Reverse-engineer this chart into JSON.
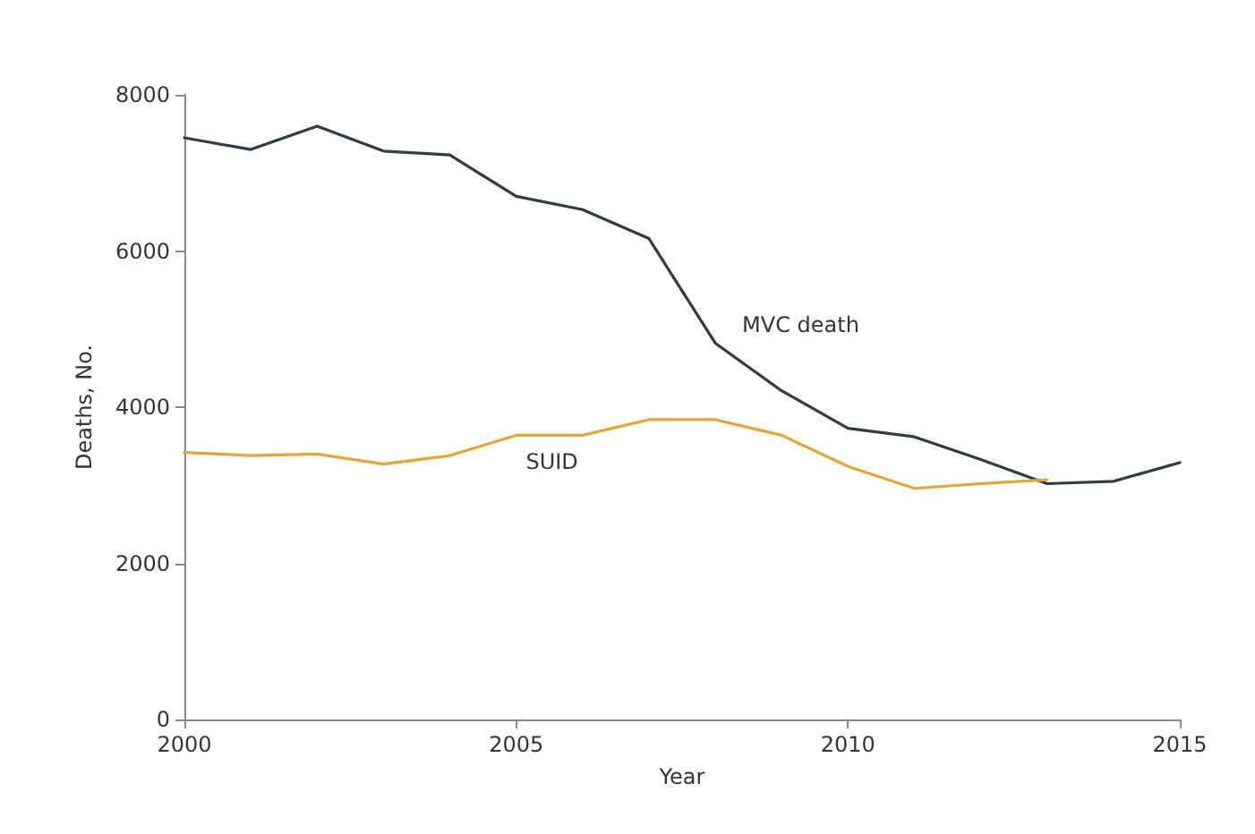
{
  "chart_data": {
    "type": "line",
    "xlabel": "Year",
    "ylabel": "Deaths, No.",
    "xlim": [
      2000,
      2015
    ],
    "xticks": [
      2000,
      2005,
      2010,
      2015
    ],
    "ylim": [
      0,
      8000
    ],
    "yticks": [
      0,
      2000,
      4000,
      6000,
      8000
    ],
    "grid": false,
    "legend": false,
    "marker": "none",
    "line_style": "solid",
    "series": [
      {
        "name": "MVC death",
        "color": "#333a40",
        "x": [
          2000,
          2001,
          2002,
          2003,
          2004,
          2005,
          2006,
          2007,
          2008,
          2009,
          2010,
          2011,
          2012,
          2013,
          2014,
          2015
        ],
        "values": [
          7450,
          7300,
          7600,
          7280,
          7230,
          6700,
          6530,
          6160,
          4820,
          4210,
          3730,
          3620,
          3330,
          3020,
          3050,
          3290
        ]
      },
      {
        "name": "SUID",
        "color": "#e0a63a",
        "x": [
          2000,
          2001,
          2002,
          2003,
          2004,
          2005,
          2006,
          2007,
          2008,
          2009,
          2010,
          2011,
          2012,
          2013
        ],
        "values": [
          3420,
          3380,
          3400,
          3270,
          3380,
          3640,
          3640,
          3840,
          3840,
          3640,
          3240,
          2960,
          3020,
          3070
        ]
      }
    ]
  }
}
